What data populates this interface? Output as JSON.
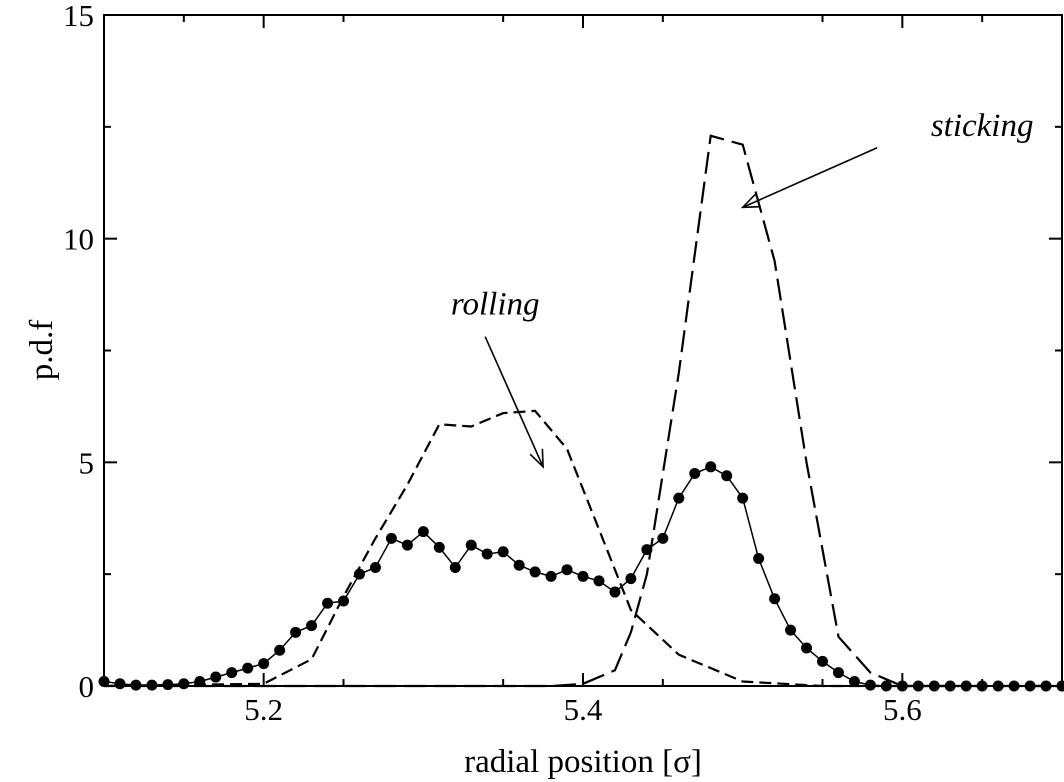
{
  "chart_data": {
    "type": "line",
    "xlabel": "radial position [σ]",
    "ylabel": "p.d.f",
    "xlim": [
      5.1,
      5.7
    ],
    "ylim": [
      0,
      15
    ],
    "xticks": [
      5.2,
      5.4,
      5.6
    ],
    "xtick_labels": [
      "5.2",
      "5.4",
      "5.6"
    ],
    "yticks": [
      0,
      5,
      10,
      15
    ],
    "ytick_labels": [
      "0",
      "5",
      "10",
      "15"
    ],
    "grid": false,
    "legend": "none",
    "series": [
      {
        "style": "solid line with filled circle markers",
        "color": "#000000",
        "x": [
          5.1,
          5.11,
          5.12,
          5.13,
          5.14,
          5.15,
          5.16,
          5.17,
          5.18,
          5.19,
          5.2,
          5.21,
          5.22,
          5.23,
          5.24,
          5.25,
          5.26,
          5.27,
          5.28,
          5.29,
          5.3,
          5.31,
          5.32,
          5.33,
          5.34,
          5.35,
          5.36,
          5.37,
          5.38,
          5.39,
          5.4,
          5.41,
          5.42,
          5.43,
          5.44,
          5.45,
          5.46,
          5.47,
          5.48,
          5.49,
          5.5,
          5.51,
          5.52,
          5.53,
          5.54,
          5.55,
          5.56,
          5.57,
          5.58,
          5.59,
          5.6,
          5.61,
          5.62,
          5.63,
          5.64,
          5.65,
          5.66,
          5.67,
          5.68,
          5.69,
          5.7
        ],
        "y": [
          0.1,
          0.05,
          0.02,
          0.02,
          0.03,
          0.05,
          0.1,
          0.2,
          0.3,
          0.4,
          0.5,
          0.8,
          1.2,
          1.35,
          1.85,
          1.9,
          2.5,
          2.65,
          3.3,
          3.15,
          3.45,
          3.1,
          2.65,
          3.15,
          2.95,
          3.0,
          2.7,
          2.55,
          2.45,
          2.6,
          2.45,
          2.35,
          2.1,
          2.4,
          3.05,
          3.3,
          4.2,
          4.75,
          4.9,
          4.7,
          4.2,
          2.85,
          1.95,
          1.25,
          0.85,
          0.55,
          0.3,
          0.1,
          0.02,
          0,
          0,
          0,
          0,
          0,
          0,
          0,
          0,
          0,
          0,
          0,
          0
        ]
      },
      {
        "style": "dashed",
        "color": "#000000",
        "x": [
          5.1,
          5.2,
          5.23,
          5.25,
          5.27,
          5.29,
          5.31,
          5.33,
          5.35,
          5.37,
          5.39,
          5.41,
          5.43,
          5.46,
          5.5,
          5.55,
          5.6,
          5.7
        ],
        "y": [
          0,
          0.05,
          0.6,
          2.0,
          3.3,
          4.5,
          5.85,
          5.8,
          6.1,
          6.15,
          5.3,
          3.5,
          1.7,
          0.7,
          0.1,
          0,
          0,
          0
        ]
      },
      {
        "style": "long dashed",
        "color": "#000000",
        "x": [
          5.1,
          5.38,
          5.4,
          5.42,
          5.43,
          5.44,
          5.46,
          5.48,
          5.5,
          5.52,
          5.54,
          5.56,
          5.58,
          5.6,
          5.7
        ],
        "y": [
          0,
          0,
          0.05,
          0.35,
          1.2,
          2.5,
          7.0,
          12.3,
          12.1,
          9.5,
          5.0,
          1.1,
          0.3,
          0,
          0
        ]
      }
    ],
    "annotations": [
      {
        "text": "rolling",
        "x": 5.345,
        "y": 8.3,
        "arrow_to_x": 5.375,
        "arrow_to_y": 4.9
      },
      {
        "text": "sticking",
        "x": 5.65,
        "y": 12.3,
        "arrow_to_x": 5.5,
        "arrow_to_y": 10.7
      }
    ]
  }
}
